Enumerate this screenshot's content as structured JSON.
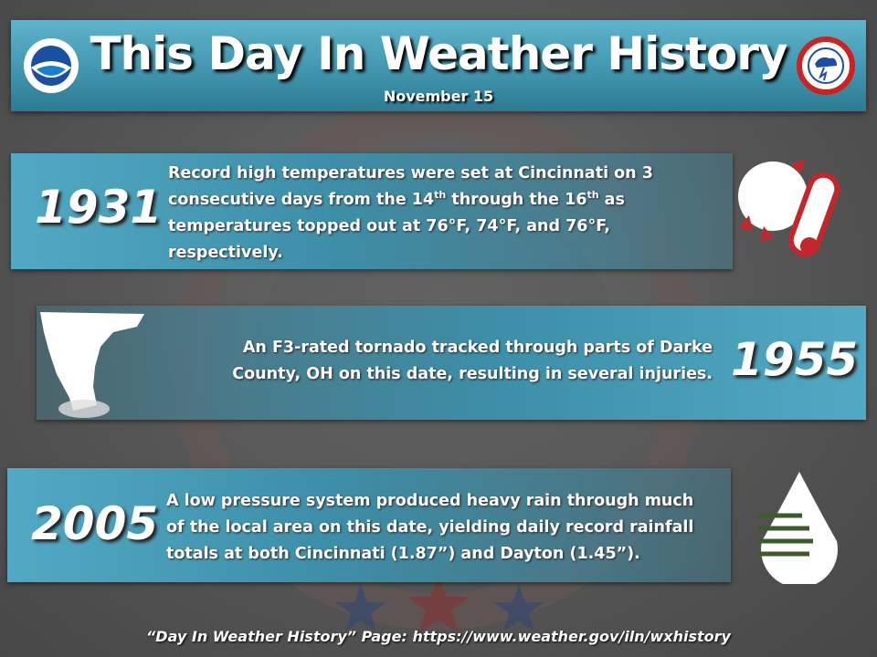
{
  "header": {
    "title": "This Day In Weather History",
    "date": "November 15"
  },
  "events": [
    {
      "year": "1931",
      "text": [
        "Record high temperatures were set at Cincinnati on 3 consecutive days from the 14",
        "th",
        " through the 16",
        "th",
        " as temperatures topped out at 76°F, 74°F, and 76°F, respectively."
      ]
    },
    {
      "year": "1955",
      "text": [
        "An F3-rated tornado tracked through parts of Darke County, OH on this date, resulting in several injuries."
      ]
    },
    {
      "year": "2005",
      "text": [
        "A low pressure system produced heavy rain through much of the local area on this date, yielding daily record rainfall totals at both Cincinnati (1.87”) and Dayton (1.45”)."
      ]
    }
  ],
  "footer": "“Day In Weather History” Page: https://www.weather.gov/iln/wxhistory"
}
